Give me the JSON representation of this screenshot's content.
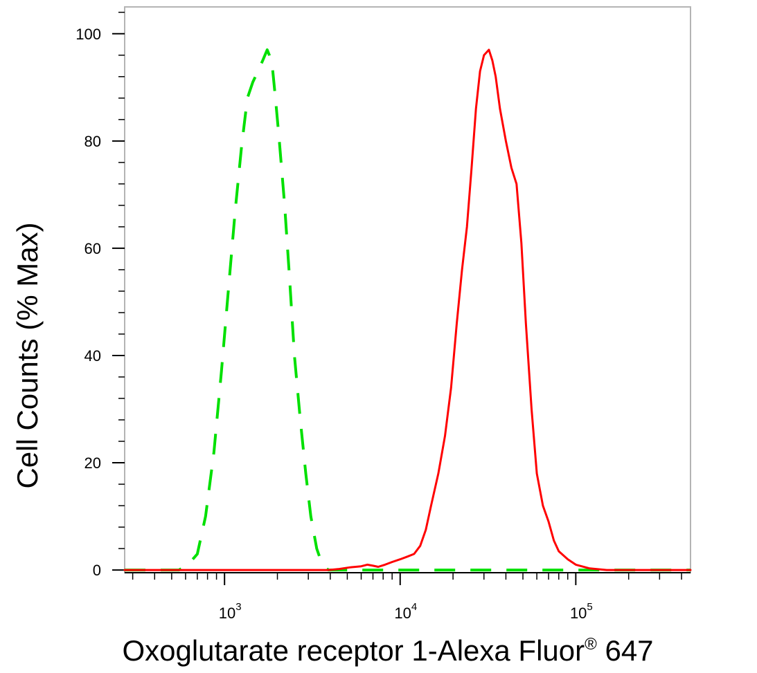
{
  "chart_data": {
    "type": "line",
    "title": "",
    "xlabel": "Oxoglutarate receptor 1-Alexa Fluor",
    "xlabel_superscript": "®",
    "xlabel_suffix": " 647",
    "ylabel": "Cell Counts (% Max)",
    "x_scale": "log",
    "xlim": [
      270,
      450000
    ],
    "ylim": [
      -0.5,
      105
    ],
    "grid": false,
    "legend": "none",
    "y_ticks": [
      {
        "value": 0,
        "label": "0"
      },
      {
        "value": 20,
        "label": "20"
      },
      {
        "value": 40,
        "label": "40"
      },
      {
        "value": 60,
        "label": "60"
      },
      {
        "value": 80,
        "label": "80"
      },
      {
        "value": 100,
        "label": "100"
      }
    ],
    "x_ticks": [
      {
        "value": 1000,
        "base": "10",
        "exp": "3"
      },
      {
        "value": 10000,
        "base": "10",
        "exp": "4"
      },
      {
        "value": 100000,
        "base": "10",
        "exp": "5"
      }
    ],
    "series": [
      {
        "color": "#00e000",
        "style": "dashed",
        "x": [
          270,
          400,
          550,
          620,
          700,
          780,
          870,
          960,
          1050,
          1150,
          1250,
          1350,
          1450,
          1550,
          1650,
          1750,
          1800,
          1870,
          1950,
          2050,
          2200,
          2350,
          2500,
          2700,
          2900,
          3100,
          3350,
          3600,
          3900,
          4300,
          6000,
          10000,
          30000,
          100000,
          450000
        ],
        "y": [
          0,
          0,
          0,
          1,
          3,
          10,
          22,
          37,
          52,
          67,
          79,
          88,
          91,
          93,
          95,
          97,
          96,
          94,
          88,
          80,
          68,
          54,
          40,
          28,
          18,
          10,
          4,
          1,
          0,
          0,
          0,
          0,
          0,
          0,
          0
        ]
      },
      {
        "color": "#ff0000",
        "style": "solid",
        "x": [
          270,
          1000,
          3900,
          4500,
          5200,
          6000,
          6500,
          7000,
          7500,
          8200,
          9000,
          10000,
          11000,
          12000,
          13000,
          14000,
          15000,
          16500,
          18000,
          19500,
          21000,
          22500,
          24000,
          25500,
          27000,
          28500,
          30000,
          32000,
          33500,
          35000,
          37000,
          40000,
          43000,
          46000,
          49000,
          52000,
          56000,
          60000,
          65000,
          70000,
          75000,
          80000,
          90000,
          100000,
          120000,
          150000,
          200000,
          450000
        ],
        "y": [
          0,
          0,
          0,
          0.2,
          0.5,
          0.7,
          1.0,
          0.8,
          0.6,
          1.0,
          1.5,
          2.0,
          2.5,
          3.0,
          4.5,
          7.5,
          12,
          18,
          25,
          34,
          46,
          56,
          64,
          75,
          86,
          93,
          96,
          97,
          95,
          92,
          86,
          80,
          75,
          72,
          61,
          46,
          30,
          18,
          12,
          9,
          5.5,
          3.5,
          2.0,
          1.0,
          0.3,
          0,
          0,
          0
        ]
      }
    ]
  }
}
